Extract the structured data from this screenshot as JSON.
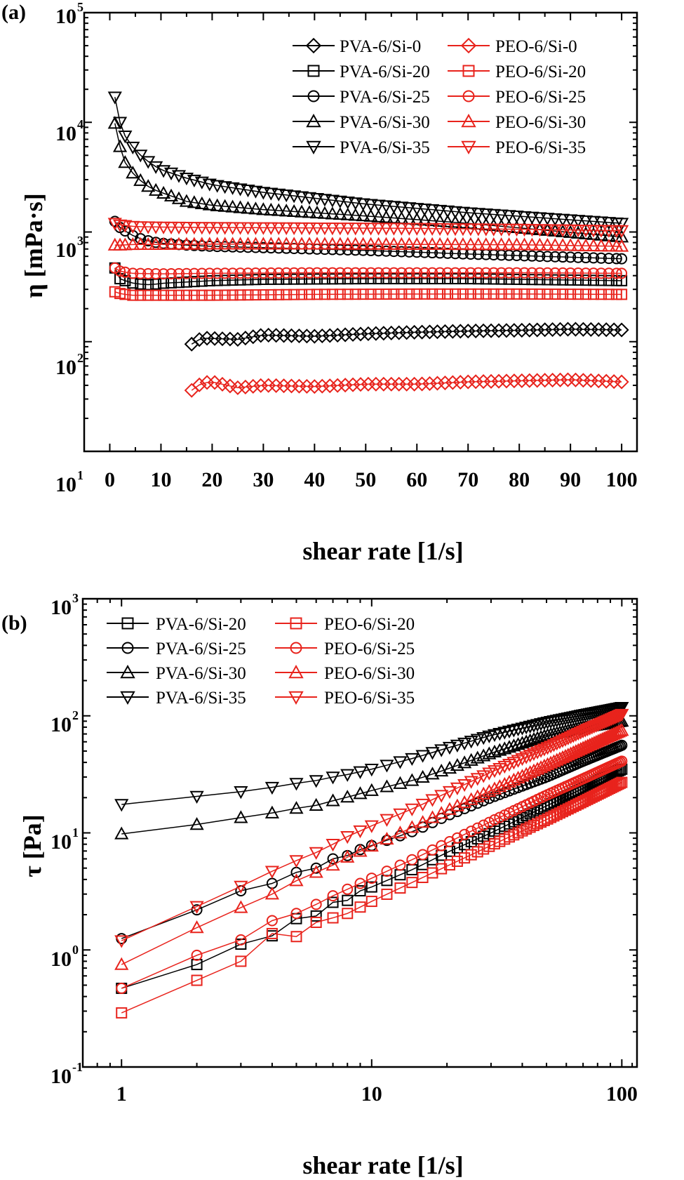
{
  "chart_data": [
    {
      "panel_label": "(a)",
      "type": "scatter",
      "x_scale": "linear",
      "y_scale": "log",
      "xlabel": "shear rate [1/s]",
      "ylabel": "η [mPa·s]",
      "xlim": [
        -5,
        103
      ],
      "ylim": [
        10,
        100000
      ],
      "x_ticks": [
        "0",
        "10",
        "20",
        "30",
        "40",
        "50",
        "60",
        "70",
        "80",
        "90",
        "100"
      ],
      "y_ticks": [
        {
          "base": "10",
          "exp": "1"
        },
        {
          "base": "10",
          "exp": "2"
        },
        {
          "base": "10",
          "exp": "3"
        },
        {
          "base": "10",
          "exp": "4"
        },
        {
          "base": "10",
          "exp": "5"
        }
      ],
      "legend_position": "top-right",
      "series": [
        {
          "name": "PVA-6/Si-0",
          "color": "#000000",
          "marker": "diamond",
          "x_start": 16,
          "x_end": 100,
          "points": [
            [
              16,
              95
            ],
            [
              18,
              108
            ],
            [
              25,
              105
            ],
            [
              30,
              115
            ],
            [
              40,
              112
            ],
            [
              50,
              118
            ],
            [
              60,
              122
            ],
            [
              70,
              125
            ],
            [
              80,
              127
            ],
            [
              90,
              130
            ],
            [
              100,
              128
            ]
          ]
        },
        {
          "name": "PVA-6/Si-20",
          "color": "#000000",
          "marker": "square",
          "x_start": 1,
          "x_end": 100,
          "points": [
            [
              1,
              470
            ],
            [
              2,
              375
            ],
            [
              4,
              345
            ],
            [
              6,
              335
            ],
            [
              8,
              330
            ],
            [
              10,
              340
            ],
            [
              15,
              350
            ],
            [
              20,
              360
            ],
            [
              30,
              370
            ],
            [
              50,
              375
            ],
            [
              70,
              375
            ],
            [
              100,
              360
            ]
          ]
        },
        {
          "name": "PVA-6/Si-25",
          "color": "#000000",
          "marker": "circle",
          "x_start": 1,
          "x_end": 100,
          "points": [
            [
              1,
              1250
            ],
            [
              2,
              1100
            ],
            [
              4,
              950
            ],
            [
              6,
              870
            ],
            [
              8,
              820
            ],
            [
              10,
              790
            ],
            [
              15,
              760
            ],
            [
              20,
              740
            ],
            [
              30,
              720
            ],
            [
              50,
              680
            ],
            [
              70,
              630
            ],
            [
              100,
              570
            ]
          ]
        },
        {
          "name": "PVA-6/Si-30",
          "color": "#000000",
          "marker": "triangle-up",
          "x_start": 1,
          "x_end": 100,
          "points": [
            [
              1,
              9800
            ],
            [
              2,
              6000
            ],
            [
              3,
              4300
            ],
            [
              5,
              3200
            ],
            [
              8,
              2500
            ],
            [
              10,
              2300
            ],
            [
              15,
              1900
            ],
            [
              20,
              1750
            ],
            [
              30,
              1600
            ],
            [
              50,
              1400
            ],
            [
              70,
              1200
            ],
            [
              100,
              900
            ]
          ]
        },
        {
          "name": "PVA-6/Si-35",
          "color": "#000000",
          "marker": "triangle-down",
          "x_start": 1,
          "x_end": 100,
          "points": [
            [
              1,
              17000
            ],
            [
              2,
              10000
            ],
            [
              3,
              7500
            ],
            [
              5,
              5500
            ],
            [
              8,
              4200
            ],
            [
              10,
              3700
            ],
            [
              15,
              3100
            ],
            [
              20,
              2700
            ],
            [
              30,
              2300
            ],
            [
              50,
              1800
            ],
            [
              70,
              1500
            ],
            [
              100,
              1200
            ]
          ]
        },
        {
          "name": "PEO-6/Si-0",
          "color": "#e8231c",
          "marker": "diamond",
          "x_start": 16,
          "x_end": 100,
          "points": [
            [
              16,
              36
            ],
            [
              18,
              42
            ],
            [
              20,
              43
            ],
            [
              25,
              38
            ],
            [
              30,
              40
            ],
            [
              40,
              39
            ],
            [
              50,
              41
            ],
            [
              60,
              41
            ],
            [
              70,
              43
            ],
            [
              80,
              44
            ],
            [
              90,
              45
            ],
            [
              100,
              43
            ]
          ]
        },
        {
          "name": "PEO-6/Si-20",
          "color": "#e8231c",
          "marker": "square",
          "x_start": 1,
          "x_end": 100,
          "points": [
            [
              1,
              285
            ],
            [
              2,
              275
            ],
            [
              4,
              265
            ],
            [
              6,
              265
            ],
            [
              10,
              265
            ],
            [
              20,
              265
            ],
            [
              40,
              270
            ],
            [
              60,
              272
            ],
            [
              80,
              272
            ],
            [
              100,
              270
            ]
          ]
        },
        {
          "name": "PEO-6/Si-25",
          "color": "#e8231c",
          "marker": "circle",
          "x_start": 1,
          "x_end": 100,
          "points": [
            [
              1,
              470
            ],
            [
              2,
              440
            ],
            [
              4,
              420
            ],
            [
              10,
              415
            ],
            [
              20,
              420
            ],
            [
              40,
              425
            ],
            [
              60,
              425
            ],
            [
              80,
              425
            ],
            [
              100,
              420
            ]
          ]
        },
        {
          "name": "PEO-6/Si-30",
          "color": "#e8231c",
          "marker": "triangle-up",
          "x_start": 1,
          "x_end": 100,
          "points": [
            [
              1,
              760
            ],
            [
              2,
              760
            ],
            [
              5,
              770
            ],
            [
              10,
              770
            ],
            [
              20,
              775
            ],
            [
              40,
              775
            ],
            [
              60,
              770
            ],
            [
              80,
              765
            ],
            [
              100,
              740
            ]
          ]
        },
        {
          "name": "PEO-6/Si-35",
          "color": "#e8231c",
          "marker": "triangle-down",
          "x_start": 1,
          "x_end": 100,
          "points": [
            [
              1,
              1200
            ],
            [
              2,
              1160
            ],
            [
              5,
              1120
            ],
            [
              10,
              1110
            ],
            [
              20,
              1100
            ],
            [
              40,
              1090
            ],
            [
              60,
              1080
            ],
            [
              80,
              1060
            ],
            [
              100,
              1030
            ]
          ]
        }
      ]
    },
    {
      "panel_label": "(b)",
      "type": "scatter",
      "x_scale": "log",
      "y_scale": "log",
      "xlabel": "shear rate [1/s]",
      "ylabel": "τ [Pa]",
      "xlim": [
        0.7,
        115
      ],
      "ylim": [
        0.1,
        1000
      ],
      "x_ticks": [
        "1",
        "10",
        "100"
      ],
      "y_ticks": [
        {
          "base": "10",
          "exp": "-1"
        },
        {
          "base": "10",
          "exp": "0"
        },
        {
          "base": "10",
          "exp": "1"
        },
        {
          "base": "10",
          "exp": "2"
        },
        {
          "base": "10",
          "exp": "3"
        }
      ],
      "legend_position": "top-left",
      "series": [
        {
          "name": "PVA-6/Si-20",
          "color": "#000000",
          "marker": "square",
          "points": [
            [
              1,
              0.47
            ],
            [
              2,
              0.75
            ],
            [
              3,
              1.12
            ],
            [
              4,
              1.32
            ],
            [
              5,
              1.85
            ],
            [
              6,
              1.95
            ],
            [
              7,
              2.55
            ],
            [
              8,
              2.65
            ],
            [
              9,
              3.2
            ],
            [
              10,
              3.45
            ],
            [
              15,
              5.0
            ],
            [
              20,
              6.8
            ],
            [
              30,
              10
            ],
            [
              50,
              17
            ],
            [
              70,
              24
            ],
            [
              100,
              35
            ]
          ]
        },
        {
          "name": "PVA-6/Si-25",
          "color": "#000000",
          "marker": "circle",
          "points": [
            [
              1,
              1.25
            ],
            [
              2,
              2.2
            ],
            [
              3,
              3.2
            ],
            [
              4,
              3.7
            ],
            [
              5,
              4.6
            ],
            [
              6,
              5.0
            ],
            [
              7,
              6.0
            ],
            [
              8,
              6.4
            ],
            [
              9,
              7.2
            ],
            [
              10,
              7.8
            ],
            [
              15,
              10.5
            ],
            [
              20,
              14
            ],
            [
              30,
              20
            ],
            [
              50,
              30
            ],
            [
              70,
              41
            ],
            [
              100,
              56
            ]
          ]
        },
        {
          "name": "PVA-6/Si-30",
          "color": "#000000",
          "marker": "triangle-up",
          "points": [
            [
              1,
              9.8
            ],
            [
              2,
              11.8
            ],
            [
              3,
              13.5
            ],
            [
              4,
              14.8
            ],
            [
              5,
              16.2
            ],
            [
              6,
              17.2
            ],
            [
              7,
              18.8
            ],
            [
              8,
              20.2
            ],
            [
              10,
              23
            ],
            [
              15,
              28.5
            ],
            [
              20,
              35
            ],
            [
              30,
              48
            ],
            [
              50,
              68
            ],
            [
              70,
              80
            ],
            [
              100,
              90
            ]
          ]
        },
        {
          "name": "PVA-6/Si-35",
          "color": "#000000",
          "marker": "triangle-down",
          "points": [
            [
              1,
              17.5
            ],
            [
              2,
              20.5
            ],
            [
              3,
              22.5
            ],
            [
              4,
              24.5
            ],
            [
              5,
              26.5
            ],
            [
              6,
              28
            ],
            [
              7,
              30
            ],
            [
              8,
              31.5
            ],
            [
              10,
              35
            ],
            [
              15,
              44
            ],
            [
              20,
              53
            ],
            [
              30,
              68
            ],
            [
              50,
              88
            ],
            [
              70,
              102
            ],
            [
              100,
              118
            ]
          ]
        },
        {
          "name": "PEO-6/Si-20",
          "color": "#e8231c",
          "marker": "square",
          "points": [
            [
              1,
              0.29
            ],
            [
              2,
              0.55
            ],
            [
              3,
              0.8
            ],
            [
              4,
              1.38
            ],
            [
              5,
              1.3
            ],
            [
              6,
              1.72
            ],
            [
              7,
              1.88
            ],
            [
              8,
              2.05
            ],
            [
              10,
              2.6
            ],
            [
              15,
              3.9
            ],
            [
              20,
              5.2
            ],
            [
              30,
              7.8
            ],
            [
              50,
              13
            ],
            [
              70,
              18.5
            ],
            [
              100,
              27
            ]
          ]
        },
        {
          "name": "PEO-6/Si-25",
          "color": "#e8231c",
          "marker": "circle",
          "points": [
            [
              1,
              0.47
            ],
            [
              2,
              0.9
            ],
            [
              3,
              1.22
            ],
            [
              4,
              1.78
            ],
            [
              5,
              2.05
            ],
            [
              6,
              2.45
            ],
            [
              7,
              2.9
            ],
            [
              8,
              3.3
            ],
            [
              10,
              4.1
            ],
            [
              15,
              6.1
            ],
            [
              20,
              8.2
            ],
            [
              30,
              12.5
            ],
            [
              50,
              21
            ],
            [
              70,
              29
            ],
            [
              100,
              41
            ]
          ]
        },
        {
          "name": "PEO-6/Si-30",
          "color": "#e8231c",
          "marker": "triangle-up",
          "points": [
            [
              1,
              0.75
            ],
            [
              2,
              1.55
            ],
            [
              3,
              2.3
            ],
            [
              4,
              3.0
            ],
            [
              5,
              3.9
            ],
            [
              6,
              4.6
            ],
            [
              7,
              5.3
            ],
            [
              8,
              6.2
            ],
            [
              10,
              7.7
            ],
            [
              15,
              11.5
            ],
            [
              20,
              15.5
            ],
            [
              30,
              23
            ],
            [
              50,
              38
            ],
            [
              70,
              53
            ],
            [
              100,
              75
            ]
          ]
        },
        {
          "name": "PEO-6/Si-35",
          "color": "#e8231c",
          "marker": "triangle-down",
          "points": [
            [
              1,
              1.2
            ],
            [
              2,
              2.35
            ],
            [
              3,
              3.5
            ],
            [
              4,
              4.7
            ],
            [
              5,
              5.8
            ],
            [
              6,
              6.8
            ],
            [
              7,
              8
            ],
            [
              8,
              9.3
            ],
            [
              10,
              11.5
            ],
            [
              15,
              16.5
            ],
            [
              20,
              22
            ],
            [
              30,
              33
            ],
            [
              50,
              53
            ],
            [
              70,
              74
            ],
            [
              100,
              103
            ]
          ]
        }
      ]
    }
  ]
}
